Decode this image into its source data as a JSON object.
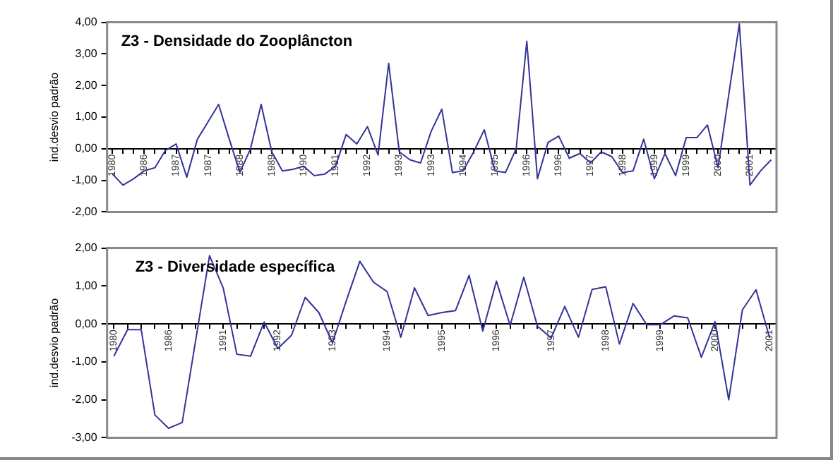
{
  "chart_data": [
    {
      "type": "line",
      "title": "Z3 - Densidade do Zooplâncton",
      "ylabel": "ind.desvio padrão",
      "marker": "none",
      "line_style": "solid",
      "grid": false,
      "legend": false,
      "categories": [
        "1980",
        null,
        null,
        "1986",
        null,
        null,
        "1987",
        null,
        null,
        "1987",
        null,
        null,
        "1988",
        null,
        null,
        "1989",
        null,
        null,
        "1990",
        null,
        null,
        "1991",
        null,
        null,
        "1992",
        null,
        null,
        "1993",
        null,
        null,
        "1993",
        null,
        null,
        "1994",
        null,
        null,
        "1995",
        null,
        null,
        "1996",
        null,
        null,
        "1996",
        null,
        null,
        "1997",
        null,
        null,
        "1998",
        null,
        null,
        "1999",
        null,
        null,
        "1999",
        null,
        null,
        "2000",
        null,
        null,
        "2001",
        null,
        null
      ],
      "series": [
        {
          "color": "#333399",
          "values": [
            -0.8,
            -1.15,
            -0.95,
            -0.7,
            -0.6,
            -0.05,
            0.15,
            -0.9,
            0.3,
            0.85,
            1.4,
            0.3,
            -0.75,
            0.0,
            1.4,
            -0.1,
            -0.7,
            -0.65,
            -0.55,
            -0.85,
            -0.8,
            -0.55,
            0.45,
            0.15,
            0.7,
            -0.2,
            2.7,
            -0.1,
            -0.35,
            -0.45,
            0.55,
            1.25,
            -0.75,
            -0.7,
            -0.1,
            0.6,
            -0.7,
            -0.75,
            0.0,
            3.4,
            -0.95,
            0.2,
            0.4,
            -0.3,
            -0.15,
            -0.45,
            -0.1,
            -0.25,
            -0.75,
            -0.7,
            0.3,
            -0.95,
            -0.15,
            -0.85,
            0.35,
            0.35,
            0.75,
            -0.6,
            1.7,
            3.95,
            -1.15,
            -0.7,
            -0.35
          ]
        }
      ],
      "ylim": [
        -2,
        4
      ],
      "yticks": [
        {
          "value": -2,
          "label": "-2,00"
        },
        {
          "value": -1,
          "label": "-1,00"
        },
        {
          "value": 0,
          "label": "0,00"
        },
        {
          "value": 1,
          "label": "1,00"
        },
        {
          "value": 2,
          "label": "2,00"
        },
        {
          "value": 3,
          "label": "3,00"
        },
        {
          "value": 4,
          "label": "4,00"
        }
      ]
    },
    {
      "type": "line",
      "title": "Z3 - Diversidade específica",
      "ylabel": "ind.desvio padrão",
      "marker": "none",
      "line_style": "solid",
      "grid": false,
      "legend": false,
      "categories": [
        "1980",
        null,
        null,
        null,
        "1986",
        null,
        null,
        null,
        "1991",
        null,
        null,
        null,
        "1992",
        null,
        null,
        null,
        "1993",
        null,
        null,
        null,
        "1994",
        null,
        null,
        null,
        "1995",
        null,
        null,
        null,
        "1996",
        null,
        null,
        null,
        "1997",
        null,
        null,
        null,
        "1998",
        null,
        null,
        null,
        "1999",
        null,
        null,
        null,
        "2000",
        null,
        null,
        null,
        "2001"
      ],
      "series": [
        {
          "color": "#333399",
          "values": [
            -0.85,
            -0.15,
            -0.15,
            -2.4,
            -2.75,
            -2.6,
            -0.4,
            1.8,
            0.95,
            -0.8,
            -0.85,
            0.05,
            -0.65,
            -0.3,
            0.7,
            0.3,
            -0.5,
            0.6,
            1.65,
            1.1,
            0.85,
            -0.35,
            0.95,
            0.22,
            0.3,
            0.35,
            1.28,
            -0.19,
            1.13,
            -0.04,
            1.23,
            -0.06,
            -0.37,
            0.46,
            -0.35,
            0.91,
            0.98,
            -0.53,
            0.54,
            -0.02,
            -0.02,
            0.21,
            0.16,
            -0.88,
            0.06,
            -2.0,
            0.37,
            0.9,
            -0.37
          ]
        }
      ],
      "ylim": [
        -3,
        2
      ],
      "yticks": [
        {
          "value": -3,
          "label": "-3,00"
        },
        {
          "value": -2,
          "label": "-2,00"
        },
        {
          "value": -1,
          "label": "-1,00"
        },
        {
          "value": 0,
          "label": "0,00"
        },
        {
          "value": 1,
          "label": "1,00"
        },
        {
          "value": 2,
          "label": "2,00"
        }
      ]
    }
  ]
}
